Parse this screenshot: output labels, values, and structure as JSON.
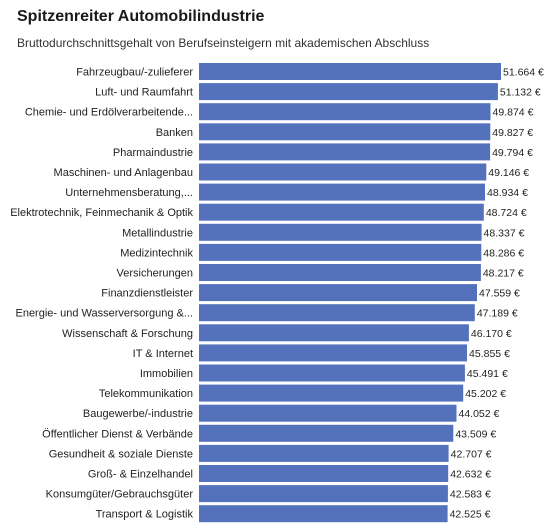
{
  "header": {
    "title": "Spitzenreiter Automobilindustrie",
    "subtitle": "Bruttodurchschnittsgehalt von Berufseinsteigern mit akademischen Abschluss"
  },
  "colors": {
    "bar": "#5472bb",
    "background": "#ffffff"
  },
  "chart_data": {
    "type": "bar",
    "orientation": "horizontal",
    "title": "Spitzenreiter Automobilindustrie",
    "subtitle": "Bruttodurchschnittsgehalt von Berufseinsteigern mit akademischen Abschluss",
    "categories": [
      "Fahrzeugbau/-zulieferer",
      "Luft- und Raumfahrt",
      "Chemie- und Erdölverarbeitende...",
      "Banken",
      "Pharmaindustrie",
      "Maschinen- und Anlagenbau",
      "Unternehmensberatung,...",
      "Elektrotechnik, Feinmechanik & Optik",
      "Metallindustrie",
      "Medizintechnik",
      "Versicherungen",
      "Finanzdienstleister",
      "Energie- und Wasserversorgung &...",
      "Wissenschaft & Forschung",
      "IT & Internet",
      "Immobilien",
      "Telekommunikation",
      "Baugewerbe/-industrie",
      "Öffentlicher Dienst & Verbände",
      "Gesundheit & soziale Dienste",
      "Groß- & Einzelhandel",
      "Konsumgüter/Gebrauchsgüter",
      "Transport & Logistik"
    ],
    "values": [
      51664,
      51132,
      49874,
      49827,
      49794,
      49146,
      48934,
      48724,
      48337,
      48286,
      48217,
      47559,
      47189,
      46170,
      45855,
      45491,
      45202,
      44052,
      43509,
      42707,
      42632,
      42583,
      42525
    ],
    "value_labels": [
      "51.664 €",
      "51.132 €",
      "49.874 €",
      "49.827 €",
      "49.794 €",
      "49.146 €",
      "48.934 €",
      "48.724 €",
      "48.337 €",
      "48.286 €",
      "48.217 €",
      "47.559 €",
      "47.189 €",
      "46.170 €",
      "45.855 €",
      "45.491 €",
      "45.202 €",
      "44.052 €",
      "43.509 €",
      "42.707 €",
      "42.632 €",
      "42.583 €",
      "42.525 €"
    ],
    "xlim": [
      0,
      51664
    ],
    "grid": false,
    "legend": "none"
  }
}
